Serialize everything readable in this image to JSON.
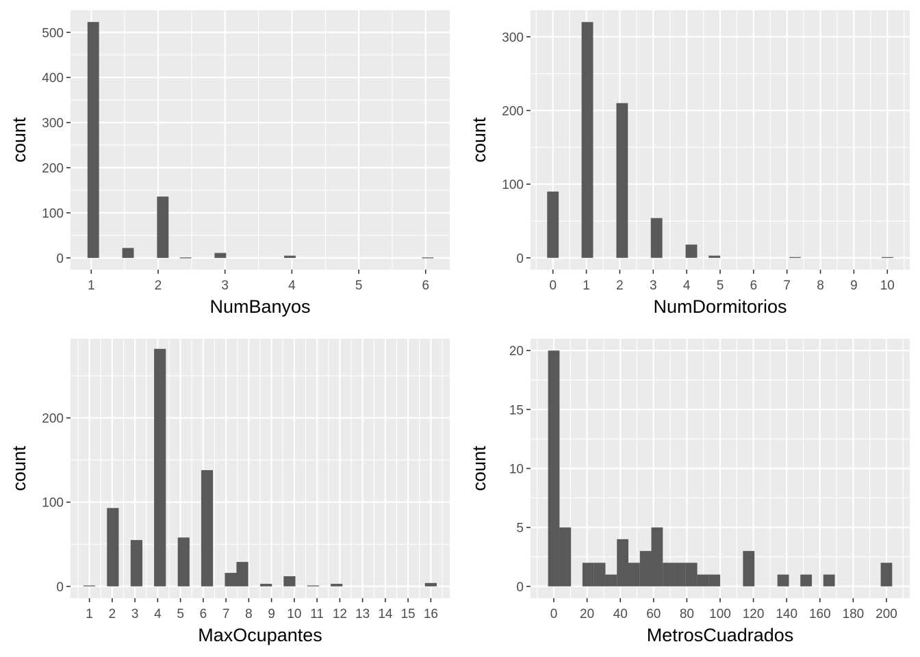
{
  "style": {
    "panel_background": "#ebebeb",
    "grid_color": "#ffffff",
    "bar_color": "#595959",
    "tick_color": "#333333",
    "tick_label_color": "#4d4d4d"
  },
  "chart_data": [
    {
      "type": "bar",
      "xlabel": "NumBanyos",
      "ylabel": "count",
      "xlim": [
        0.69,
        6.36
      ],
      "ylim": [
        -26,
        549
      ],
      "x_ticks": [
        1,
        2,
        3,
        4,
        5,
        6
      ],
      "x_tick_labels": [
        "1",
        "2",
        "3",
        "4",
        "5",
        "6"
      ],
      "y_ticks": [
        0,
        100,
        200,
        300,
        400,
        500
      ],
      "y_tick_labels": [
        "0",
        "100",
        "200",
        "300",
        "400",
        "500"
      ],
      "grid": true,
      "bin_width": 0.1724,
      "bars": [
        {
          "x": 1.03,
          "count": 523
        },
        {
          "x": 1.55,
          "count": 22
        },
        {
          "x": 2.07,
          "count": 136
        },
        {
          "x": 2.41,
          "count": 1
        },
        {
          "x": 2.93,
          "count": 11
        },
        {
          "x": 3.97,
          "count": 5
        },
        {
          "x": 6.03,
          "count": 1
        }
      ]
    },
    {
      "type": "bar",
      "xlabel": "NumDormitorios",
      "ylabel": "count",
      "xlim": [
        -0.67,
        10.67
      ],
      "ylim": [
        -16,
        336
      ],
      "x_ticks": [
        0,
        1,
        2,
        3,
        4,
        5,
        6,
        7,
        8,
        9,
        10
      ],
      "x_tick_labels": [
        "0",
        "1",
        "2",
        "3",
        "4",
        "5",
        "6",
        "7",
        "8",
        "9",
        "10"
      ],
      "y_ticks": [
        0,
        100,
        200,
        300
      ],
      "y_tick_labels": [
        "0",
        "100",
        "200",
        "300"
      ],
      "grid": true,
      "bin_width": 0.345,
      "bars": [
        {
          "x": 0,
          "count": 90
        },
        {
          "x": 1.03,
          "count": 320
        },
        {
          "x": 2.07,
          "count": 210
        },
        {
          "x": 3.1,
          "count": 54
        },
        {
          "x": 4.14,
          "count": 18
        },
        {
          "x": 4.83,
          "count": 3
        },
        {
          "x": 7.24,
          "count": 1
        },
        {
          "x": 10,
          "count": 1
        }
      ]
    },
    {
      "type": "bar",
      "xlabel": "MaxOcupantes",
      "ylabel": "count",
      "xlim": [
        0.17,
        16.83
      ],
      "ylim": [
        -14,
        294
      ],
      "x_ticks": [
        1,
        2,
        3,
        4,
        5,
        6,
        7,
        8,
        9,
        10,
        11,
        12,
        13,
        14,
        15,
        16
      ],
      "x_tick_labels": [
        "1",
        "2",
        "3",
        "4",
        "5",
        "6",
        "7",
        "8",
        "9",
        "10",
        "11",
        "12",
        "13",
        "14",
        "15",
        "16"
      ],
      "y_ticks": [
        0,
        100,
        200
      ],
      "y_tick_labels": [
        "0",
        "100",
        "200"
      ],
      "grid": true,
      "bin_width": 0.517,
      "bars": [
        {
          "x": 1,
          "count": 1
        },
        {
          "x": 2.03,
          "count": 93
        },
        {
          "x": 3.07,
          "count": 55
        },
        {
          "x": 4.1,
          "count": 282
        },
        {
          "x": 5.14,
          "count": 58
        },
        {
          "x": 6.17,
          "count": 138
        },
        {
          "x": 7.21,
          "count": 16
        },
        {
          "x": 7.72,
          "count": 29
        },
        {
          "x": 8.76,
          "count": 3
        },
        {
          "x": 9.79,
          "count": 12
        },
        {
          "x": 10.83,
          "count": 1
        },
        {
          "x": 11.86,
          "count": 3
        },
        {
          "x": 16,
          "count": 4
        }
      ]
    },
    {
      "type": "bar",
      "xlabel": "MetrosCuadrados",
      "ylabel": "count",
      "xlim": [
        -14,
        214
      ],
      "ylim": [
        -1,
        21
      ],
      "x_ticks": [
        0,
        20,
        40,
        60,
        80,
        100,
        120,
        140,
        160,
        180,
        200
      ],
      "x_tick_labels": [
        "0",
        "20",
        "40",
        "60",
        "80",
        "100",
        "120",
        "140",
        "160",
        "180",
        "200"
      ],
      "y_ticks": [
        0,
        5,
        10,
        15,
        20
      ],
      "y_tick_labels": [
        "0",
        "5",
        "10",
        "15",
        "20"
      ],
      "grid": true,
      "bin_width": 6.9,
      "bars": [
        {
          "x": 0,
          "count": 20
        },
        {
          "x": 6.9,
          "count": 5
        },
        {
          "x": 20.7,
          "count": 2
        },
        {
          "x": 27.6,
          "count": 2
        },
        {
          "x": 34.5,
          "count": 1
        },
        {
          "x": 41.4,
          "count": 4
        },
        {
          "x": 48.3,
          "count": 2
        },
        {
          "x": 55.2,
          "count": 3
        },
        {
          "x": 62.1,
          "count": 5
        },
        {
          "x": 69.0,
          "count": 2
        },
        {
          "x": 75.9,
          "count": 2
        },
        {
          "x": 82.8,
          "count": 2
        },
        {
          "x": 89.7,
          "count": 1
        },
        {
          "x": 96.6,
          "count": 1
        },
        {
          "x": 117.2,
          "count": 3
        },
        {
          "x": 137.9,
          "count": 1
        },
        {
          "x": 151.7,
          "count": 1
        },
        {
          "x": 165.5,
          "count": 1
        },
        {
          "x": 200,
          "count": 2
        }
      ]
    }
  ]
}
